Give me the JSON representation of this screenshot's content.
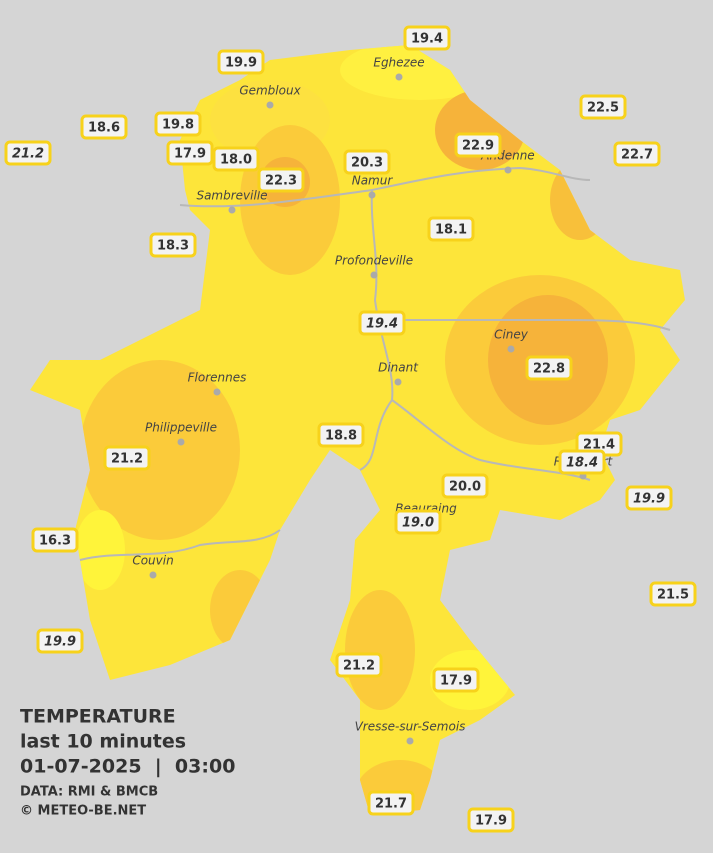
{
  "cities": [
    "Eghezee",
    "Gembloux",
    "Andenne",
    "Namur",
    "Sambreville",
    "Profondeville",
    "Ciney",
    "Dinant",
    "Florennes",
    "Philippeville",
    "Rochefort",
    "Beauraing",
    "Couvin",
    "Vresse-sur-Semois"
  ],
  "stations": [
    {
      "value": 19.4
    },
    {
      "value": 19.9
    },
    {
      "value": 18.6
    },
    {
      "value": 19.8
    },
    {
      "value": 21.2,
      "italic": true
    },
    {
      "value": 17.9
    },
    {
      "value": 18,
      "label": "18.0"
    },
    {
      "value": 22.3
    },
    {
      "value": 20.3
    },
    {
      "value": 22.9
    },
    {
      "value": 22.5
    },
    {
      "value": 22.7
    },
    {
      "value": 18.1
    },
    {
      "value": 18.3
    },
    {
      "value": 19.4,
      "italic": true
    },
    {
      "value": 22.8
    },
    {
      "value": 18.8
    },
    {
      "value": 21.2
    },
    {
      "value": 21.4
    },
    {
      "value": 18.4,
      "italic": true
    },
    {
      "value": 19.9,
      "italic": true
    },
    {
      "value": 20,
      "label": "20.0"
    },
    {
      "value": 19,
      "label": "19.0",
      "italic": true
    },
    {
      "value": 16.3
    },
    {
      "value": 21.5
    },
    {
      "value": 19.9,
      "italic": true
    },
    {
      "value": 21.2
    },
    {
      "value": 17.9
    },
    {
      "value": 21.7
    },
    {
      "value": 17.9
    }
  ],
  "legend": {
    "title": "TEMPERATURE",
    "period": "last 10 minutes",
    "datetime": "01-07-2025  |  03:00",
    "source": "DATA: RMI & BMCB",
    "copyright": "© METEO-BE.NET"
  }
}
